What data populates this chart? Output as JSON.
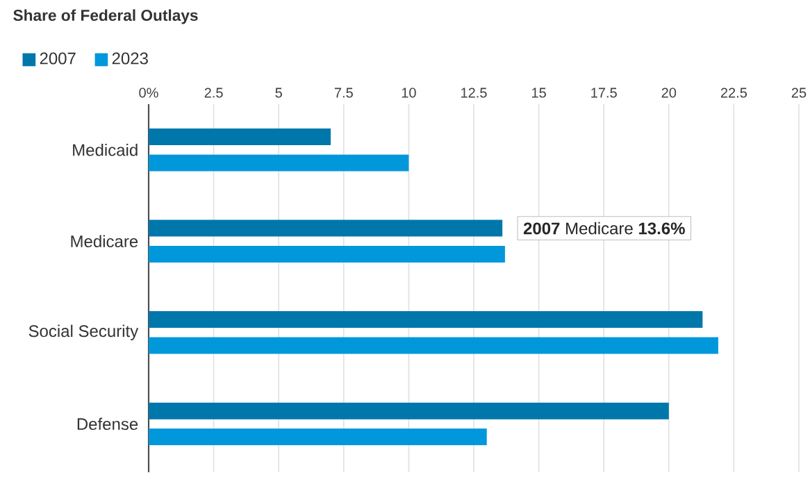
{
  "chart_data": {
    "type": "bar",
    "orientation": "horizontal",
    "title": "Share of Federal Outlays",
    "categories": [
      "Medicaid",
      "Medicare",
      "Social Security",
      "Defense"
    ],
    "series": [
      {
        "name": "2007",
        "color": "#0077aa",
        "values": [
          7.0,
          13.6,
          21.3,
          20.0
        ]
      },
      {
        "name": "2023",
        "color": "#0098db",
        "values": [
          10.0,
          13.7,
          21.9,
          13.0
        ]
      }
    ],
    "xlim": [
      0,
      25
    ],
    "xticks": [
      {
        "value": 0,
        "label": "0%"
      },
      2.5,
      5,
      7.5,
      10,
      12.5,
      15,
      17.5,
      20,
      22.5,
      25
    ],
    "grid": "x",
    "legend": "top left",
    "annotations": [
      {
        "text": "**2007** Medicare **13.6%**",
        "x": 13.6,
        "y": "Medicare"
      }
    ]
  }
}
